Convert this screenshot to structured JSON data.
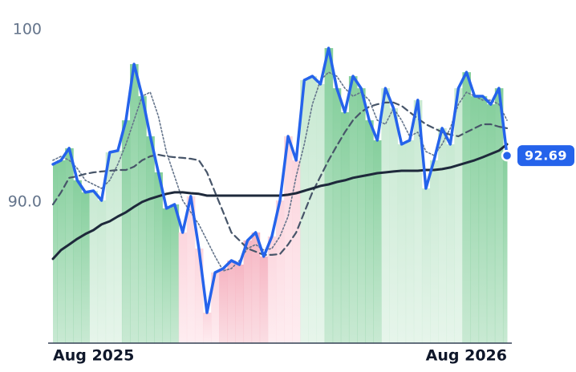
{
  "chart_data": {
    "type": "line",
    "categories": [
      "Aug 2025",
      null,
      null,
      null,
      null,
      null,
      null,
      null,
      null,
      null,
      null,
      null,
      null,
      null,
      null,
      null,
      null,
      null,
      null,
      null,
      null,
      null,
      null,
      null,
      null,
      null,
      null,
      null,
      null,
      null,
      null,
      null,
      null,
      null,
      null,
      null,
      null,
      null,
      null,
      null,
      null,
      null,
      null,
      null,
      null,
      null,
      null,
      null,
      null,
      null,
      null,
      null,
      null,
      null,
      null,
      null,
      "Aug 2026"
    ],
    "series": [
      {
        "color": "#2563eb",
        "line_style": "solid",
        "values": [
          92.19,
          92.42,
          93.12,
          91.26,
          90.56,
          90.65,
          90.09,
          92.88,
          92.98,
          94.74,
          98.0,
          96.14,
          93.81,
          91.72,
          89.63,
          89.86,
          88.23,
          90.33,
          87.3,
          83.58,
          85.91,
          86.14,
          86.6,
          86.37,
          87.77,
          88.23,
          86.84,
          88.0,
          90.09,
          93.81,
          92.42,
          97.07,
          97.3,
          96.84,
          98.93,
          96.6,
          95.21,
          97.3,
          96.6,
          94.74,
          93.58,
          96.6,
          95.44,
          93.35,
          93.58,
          95.91,
          90.79,
          92.42,
          94.28,
          93.35,
          96.6,
          97.53,
          96.14,
          96.14,
          95.67,
          96.6,
          92.69
        ]
      },
      {
        "color": "#64748b",
        "line_style": "dotted",
        "values": [
          92.42,
          92.65,
          92.42,
          91.95,
          91.26,
          91.02,
          90.79,
          91.26,
          92.19,
          93.35,
          94.74,
          96.14,
          96.37,
          94.98,
          92.88,
          91.49,
          90.09,
          89.4,
          88.7,
          87.77,
          86.84,
          86.0,
          86.14,
          86.6,
          87.3,
          87.53,
          87.21,
          87.3,
          88.0,
          89.16,
          91.49,
          93.35,
          95.67,
          97.07,
          97.53,
          97.3,
          96.6,
          96.14,
          96.37,
          95.91,
          94.74,
          94.51,
          95.44,
          94.74,
          93.81,
          94.05,
          92.93,
          92.7,
          93.35,
          94.28,
          95.67,
          96.37,
          96.14,
          95.91,
          95.91,
          95.67,
          94.74
        ]
      },
      {
        "color": "#475569",
        "line_style": "dashed",
        "values": [
          89.86,
          90.56,
          91.4,
          91.49,
          91.63,
          91.72,
          91.77,
          91.81,
          91.86,
          91.86,
          92.05,
          92.42,
          92.65,
          92.74,
          92.65,
          92.6,
          92.56,
          92.51,
          92.42,
          91.72,
          90.56,
          89.4,
          88.23,
          87.77,
          87.3,
          87.12,
          86.93,
          86.93,
          86.98,
          87.53,
          88.23,
          89.4,
          90.56,
          91.49,
          92.42,
          93.26,
          94.05,
          94.74,
          95.21,
          95.53,
          95.67,
          95.77,
          95.77,
          95.58,
          95.21,
          94.84,
          94.51,
          94.28,
          94.05,
          93.91,
          93.81,
          94.05,
          94.28,
          94.51,
          94.51,
          94.37,
          94.28
        ]
      },
      {
        "color": "#1e293b",
        "line_style": "solid-thick",
        "values": [
          86.7,
          87.21,
          87.53,
          87.86,
          88.14,
          88.37,
          88.7,
          88.88,
          89.16,
          89.4,
          89.72,
          90.0,
          90.19,
          90.33,
          90.47,
          90.56,
          90.56,
          90.51,
          90.47,
          90.37,
          90.37,
          90.37,
          90.37,
          90.37,
          90.37,
          90.37,
          90.37,
          90.37,
          90.37,
          90.42,
          90.51,
          90.65,
          90.79,
          90.93,
          91.02,
          91.16,
          91.26,
          91.4,
          91.49,
          91.58,
          91.67,
          91.72,
          91.77,
          91.81,
          91.81,
          91.81,
          91.86,
          91.86,
          91.91,
          92.0,
          92.14,
          92.28,
          92.42,
          92.6,
          92.79,
          92.98,
          93.35
        ]
      }
    ],
    "band_colors": [
      "#86cf9d",
      "#86cf9d",
      "#86cf9d",
      "#86cf9d",
      "#86cf9d",
      "#c8e9d2",
      "#c8e9d2",
      "#c8e9d2",
      "#c8e9d2",
      "#86cf9d",
      "#86cf9d",
      "#86cf9d",
      "#86cf9d",
      "#86cf9d",
      "#86cf9d",
      "#86cf9d",
      "#fcd6de",
      "#fcd6de",
      "#fcd6de",
      "#fcd6de",
      "#fcd6de",
      "#f6b6c3",
      "#f6b6c3",
      "#f6b6c3",
      "#f6b6c3",
      "#f6b6c3",
      "#f6b6c3",
      "#fcd6de",
      "#fcd6de",
      "#fcd6de",
      "#fcd6de",
      "#c8e9d2",
      "#c8e9d2",
      "#c8e9d2",
      "#86cf9d",
      "#86cf9d",
      "#86cf9d",
      "#86cf9d",
      "#86cf9d",
      "#86cf9d",
      "#86cf9d",
      "#c8e9d2",
      "#c8e9d2",
      "#c8e9d2",
      "#c8e9d2",
      "#c8e9d2",
      "#c8e9d2",
      "#c8e9d2",
      "#c8e9d2",
      "#c8e9d2",
      "#c8e9d2",
      "#86cf9d",
      "#86cf9d",
      "#86cf9d",
      "#86cf9d",
      "#86cf9d",
      "#86cf9d"
    ],
    "ylim": [
      81.81,
      101.72
    ],
    "yticks": [
      {
        "value": 90,
        "label": "90.0"
      },
      100
    ],
    "grid": false
  }
}
